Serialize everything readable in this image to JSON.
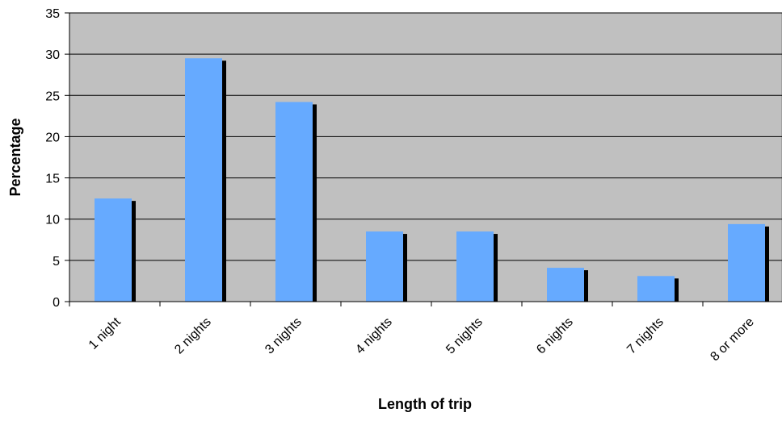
{
  "chart_data": {
    "type": "bar",
    "title": "",
    "xlabel": "Length of trip",
    "ylabel": "Percentage",
    "categories": [
      "1 night",
      "2 nights",
      "3 nights",
      "4 nights",
      "5 nights",
      "6 nights",
      "7 nights",
      "8 or more"
    ],
    "values": [
      12.5,
      29.5,
      24.2,
      8.5,
      8.5,
      4.1,
      3.1,
      9.4
    ],
    "ylim": [
      0,
      35
    ],
    "yticks": [
      0,
      5,
      10,
      15,
      20,
      25,
      30,
      35
    ],
    "grid": true,
    "legend": "none",
    "colors": {
      "plot_background": "#c0c0c0",
      "bar": "#66aaff",
      "bar_shadow": "#000000",
      "gridline": "#000000"
    }
  }
}
